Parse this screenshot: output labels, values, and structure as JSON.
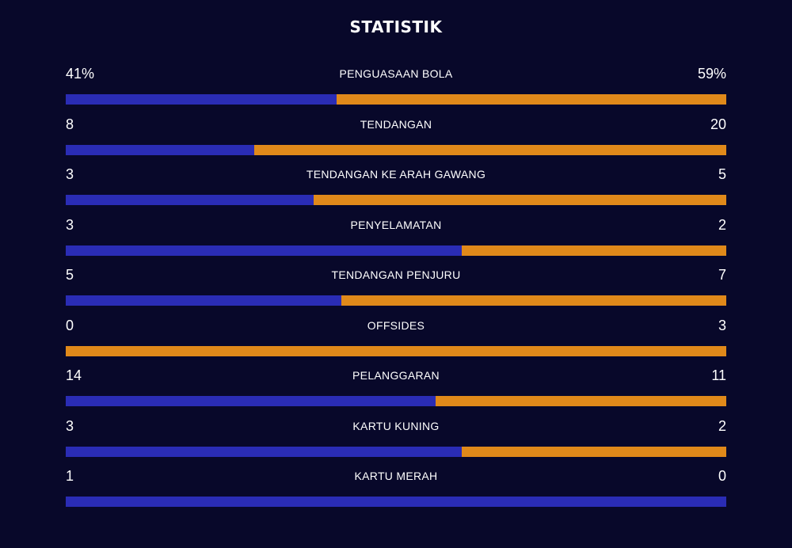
{
  "title": "STATISTIK",
  "colors": {
    "background": "#08082a",
    "home": "#2a2cb5",
    "away": "#e0891a",
    "text": "#ffffff"
  },
  "stats": [
    {
      "label": "PENGUASAAN BOLA",
      "home": "41%",
      "away": "59%",
      "home_share": 0.41
    },
    {
      "label": "TENDANGAN",
      "home": "8",
      "away": "20",
      "home_share": 0.2857
    },
    {
      "label": "TENDANGAN KE ARAH GAWANG",
      "home": "3",
      "away": "5",
      "home_share": 0.375
    },
    {
      "label": "PENYELAMATAN",
      "home": "3",
      "away": "2",
      "home_share": 0.6
    },
    {
      "label": "TENDANGAN PENJURU",
      "home": "5",
      "away": "7",
      "home_share": 0.4167
    },
    {
      "label": "OFFSIDES",
      "home": "0",
      "away": "3",
      "home_share": 0.0
    },
    {
      "label": "PELANGGARAN",
      "home": "14",
      "away": "11",
      "home_share": 0.56
    },
    {
      "label": "KARTU KUNING",
      "home": "3",
      "away": "2",
      "home_share": 0.6
    },
    {
      "label": "KARTU MERAH",
      "home": "1",
      "away": "0",
      "home_share": 1.0
    }
  ]
}
